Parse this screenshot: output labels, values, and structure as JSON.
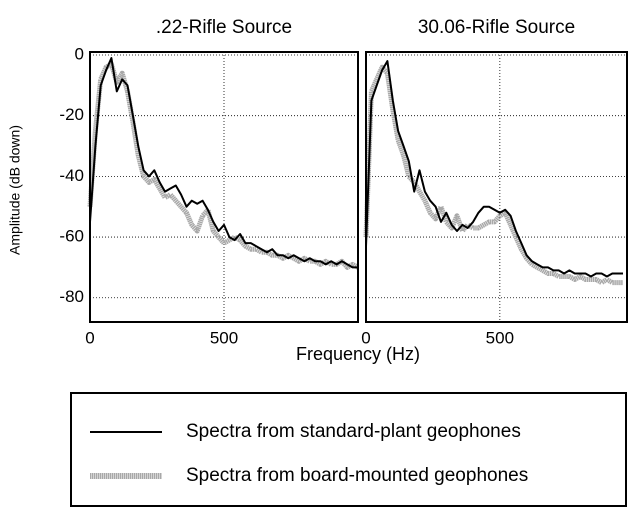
{
  "chart_data": [
    {
      "type": "line",
      "title": ".22-Rifle Source",
      "x": [
        0,
        20,
        40,
        60,
        80,
        100,
        120,
        140,
        160,
        180,
        200,
        220,
        240,
        260,
        280,
        300,
        320,
        340,
        360,
        380,
        400,
        420,
        440,
        460,
        480,
        500,
        520,
        540,
        560,
        580,
        600,
        620,
        640,
        660,
        680,
        700,
        720,
        740,
        760,
        780,
        800,
        820,
        840,
        860,
        880,
        900,
        920,
        940,
        960,
        980,
        1000
      ],
      "series": [
        {
          "name": "Spectra from standard-plant geophones",
          "color": "#000000",
          "values": [
            -55,
            -30,
            -10,
            -5,
            -1,
            -12,
            -8,
            -10,
            -20,
            -30,
            -38,
            -40,
            -38,
            -42,
            -45,
            -44,
            -43,
            -46,
            -50,
            -48,
            -49,
            -48,
            -51,
            -55,
            -58,
            -56,
            -60,
            -61,
            -59,
            -62,
            -62,
            -63,
            -64,
            -65,
            -64,
            -66,
            -66,
            -67,
            -66,
            -67,
            -68,
            -67,
            -68,
            -68,
            -69,
            -68,
            -69,
            -68,
            -69,
            -70,
            -70
          ]
        },
        {
          "name": "Spectra from board-mounted geophones",
          "color": "#a8a8a8",
          "values": [
            -50,
            -25,
            -8,
            -4,
            -3,
            -9,
            -6,
            -12,
            -22,
            -33,
            -40,
            -42,
            -41,
            -44,
            -47,
            -46,
            -48,
            -50,
            -52,
            -56,
            -58,
            -53,
            -51,
            -58,
            -60,
            -62,
            -61,
            -60,
            -61,
            -63,
            -64,
            -64,
            -65,
            -65,
            -66,
            -66,
            -67,
            -66,
            -67,
            -68,
            -67,
            -68,
            -68,
            -69,
            -68,
            -69,
            -69,
            -68,
            -70,
            -69,
            -70
          ]
        }
      ],
      "xlim": [
        0,
        1000
      ],
      "xticks": [
        0,
        500
      ],
      "ylim": [
        -88,
        1
      ],
      "yticks": [
        0,
        -20,
        -40,
        -60,
        -80
      ],
      "grid": true
    },
    {
      "type": "line",
      "title": "30.06-Rifle Source",
      "x": [
        0,
        20,
        40,
        60,
        80,
        100,
        120,
        140,
        160,
        180,
        200,
        220,
        240,
        260,
        280,
        300,
        320,
        340,
        360,
        380,
        400,
        420,
        440,
        460,
        480,
        500,
        520,
        540,
        560,
        580,
        600,
        620,
        640,
        660,
        680,
        700,
        720,
        740,
        760,
        780,
        800,
        820,
        840,
        860,
        880,
        900,
        920,
        940,
        960
      ],
      "series": [
        {
          "color": "#000000",
          "values": [
            -63,
            -15,
            -10,
            -5,
            -2,
            -15,
            -25,
            -30,
            -35,
            -45,
            -38,
            -45,
            -48,
            -50,
            -55,
            -52,
            -56,
            -58,
            -56,
            -57,
            -55,
            -52,
            -50,
            -50,
            -51,
            -52,
            -51,
            -53,
            -58,
            -62,
            -66,
            -68,
            -69,
            -70,
            -70,
            -71,
            -71,
            -72,
            -71,
            -72,
            -72,
            -72,
            -73,
            -72,
            -72,
            -73,
            -72,
            -72,
            -72
          ]
        },
        {
          "color": "#a8a8a8",
          "values": [
            -60,
            -12,
            -8,
            -4,
            -6,
            -18,
            -28,
            -33,
            -40,
            -42,
            -45,
            -48,
            -52,
            -54,
            -50,
            -55,
            -57,
            -53,
            -58,
            -56,
            -57,
            -57,
            -56,
            -55,
            -55,
            -53,
            -52,
            -56,
            -60,
            -64,
            -67,
            -69,
            -70,
            -71,
            -72,
            -72,
            -73,
            -73,
            -73,
            -74,
            -73,
            -74,
            -74,
            -74,
            -75,
            -74,
            -75,
            -75,
            -75
          ]
        }
      ],
      "xlim": [
        0,
        975
      ],
      "xticks": [
        0,
        500
      ],
      "ylim": [
        -88,
        1
      ],
      "yticks": [
        0,
        -20,
        -40,
        -60,
        -80
      ],
      "grid": true
    }
  ],
  "xlabel": "Frequency (Hz)",
  "ylabel": "Amplitude (dB down)"
}
